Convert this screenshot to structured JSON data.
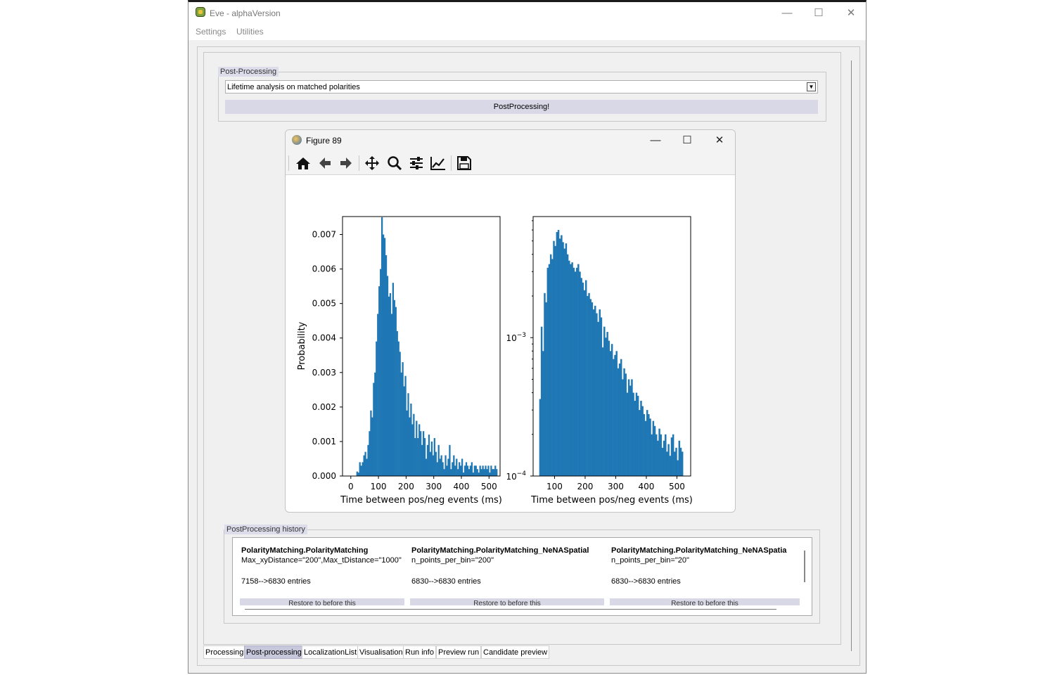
{
  "window": {
    "title": "Eve - alphaVersion",
    "controls": {
      "minimize": "—",
      "maximize": "☐",
      "close": "✕"
    }
  },
  "menu": [
    "Settings",
    "Utilities"
  ],
  "postprocessing": {
    "group_title": "Post-Processing",
    "selected_option": "Lifetime analysis on matched polarities",
    "run_button": "PostProcessing!"
  },
  "figure": {
    "title": "Figure 89",
    "toolbar": [
      "home-icon",
      "back-arrow-icon",
      "forward-arrow-icon",
      "pan-icon",
      "zoom-icon",
      "configure-subplots-icon",
      "edit-axis-icon",
      "save-icon"
    ]
  },
  "chart_data": [
    {
      "type": "bar",
      "title": "",
      "xlabel": "Time between pos/neg events (ms)",
      "ylabel": "Probability",
      "xlim": [
        -30,
        540
      ],
      "ylim": [
        0,
        0.00752
      ],
      "xticks": [
        "0",
        "100",
        "200",
        "300",
        "400",
        "500"
      ],
      "xtick_values": [
        0,
        100,
        200,
        300,
        400,
        500
      ],
      "yticks": [
        "0.000",
        "0.001",
        "0.002",
        "0.003",
        "0.004",
        "0.005",
        "0.006",
        "0.007"
      ],
      "ytick_values": [
        0,
        0.001,
        0.002,
        0.003,
        0.004,
        0.005,
        0.006,
        0.007
      ],
      "bin_start": 20,
      "bin_width": 5,
      "values": [
        0.00013,
        0.0001,
        0.0004,
        0.0003,
        0.0004,
        0.0006,
        0.0007,
        0.0005,
        0.0009,
        0.0013,
        0.0019,
        0.0017,
        0.0027,
        0.003,
        0.0039,
        0.0047,
        0.0055,
        0.006,
        0.0075,
        0.007,
        0.0069,
        0.0064,
        0.0058,
        0.0052,
        0.0053,
        0.0047,
        0.0056,
        0.0051,
        0.0049,
        0.0042,
        0.0039,
        0.0036,
        0.003,
        0.0033,
        0.0026,
        0.0029,
        0.0019,
        0.0024,
        0.0017,
        0.0021,
        0.0015,
        0.0018,
        0.0011,
        0.0016,
        0.0011,
        0.0015,
        0.0013,
        0.0009,
        0.0013,
        0.0011,
        0.0005,
        0.0009,
        0.0012,
        0.0007,
        0.001,
        0.0006,
        0.0011,
        0.0007,
        0.0004,
        0.0009,
        0.0005,
        0.0006,
        0.0004,
        0.0002,
        0.0006,
        0.0003,
        0.0005,
        0.0009,
        0.0002,
        0.0004,
        0.0006,
        0.0003,
        0.0005,
        0.0002,
        0.0004,
        0.0003,
        0.0005,
        0.0001,
        0.0003,
        0.0004,
        0.0003,
        0.0002,
        0.0003,
        0.0004,
        0.0001,
        0.0003,
        0.0003,
        0.0002,
        0.0001,
        0.0003,
        0.0002,
        0.0003,
        0.0002,
        0.0003,
        0.0002,
        0.0003,
        0.0001,
        0.0003,
        0.0002,
        0.0002,
        0.0003,
        0.0002
      ]
    },
    {
      "type": "bar",
      "title": "",
      "xlabel": "Time between pos/neg events (ms)",
      "ylabel": "",
      "yscale": "log",
      "xlim": [
        30,
        545
      ],
      "ylim": [
        0.0001,
        0.0075
      ],
      "xticks": [
        "100",
        "200",
        "300",
        "400",
        "500"
      ],
      "xtick_values": [
        100,
        200,
        300,
        400,
        500
      ],
      "yticks_log": [
        {
          "base": "10",
          "exp": "−4",
          "value": 0.0001
        },
        {
          "base": "10",
          "exp": "−3",
          "value": 0.001
        }
      ],
      "bin_start": 50,
      "bin_width": 5,
      "values": [
        0.00036,
        0.0012,
        0.0008,
        0.0021,
        0.0018,
        0.0032,
        0.0034,
        0.004,
        0.0037,
        0.005,
        0.0046,
        0.0058,
        0.006,
        0.0052,
        0.0055,
        0.0049,
        0.0044,
        0.0048,
        0.004,
        0.0036,
        0.0034,
        0.0035,
        0.0032,
        0.003,
        0.0032,
        0.0034,
        0.003,
        0.0027,
        0.0025,
        0.0022,
        0.0026,
        0.002,
        0.0021,
        0.0019,
        0.0018,
        0.0016,
        0.0017,
        0.0015,
        0.0013,
        0.0016,
        0.0014,
        0.00085,
        0.0012,
        0.001,
        0.0011,
        0.00095,
        0.0008,
        0.0009,
        0.0007,
        0.00075,
        0.0008,
        0.0006,
        0.00065,
        0.0007,
        0.0005,
        0.0006,
        0.00055,
        0.0004,
        0.0005,
        0.00045,
        0.0005,
        0.0004,
        0.00035,
        0.0004,
        0.00038,
        0.0003,
        0.00035,
        0.00032,
        0.00028,
        0.00025,
        0.0003,
        0.00028,
        0.00026,
        0.0002,
        0.00025,
        0.00023,
        0.0002,
        0.00018,
        0.00022,
        0.0002,
        0.00016,
        0.00018,
        0.0002,
        0.00015,
        0.00017,
        0.00014,
        0.00019,
        0.0002,
        0.00015,
        0.00016,
        0.00013,
        0.00018,
        0.00016,
        0.00015
      ]
    }
  ],
  "history": {
    "group_title": "PostProcessing history",
    "entries": [
      {
        "title": "PolarityMatching.PolarityMatching",
        "params": "Max_xyDistance=\"200\",Max_tDistance=\"1000\"",
        "entries": "7158-->6830 entries"
      },
      {
        "title": "PolarityMatching.PolarityMatching_NeNASpatial",
        "params": "n_points_per_bin=\"200\"",
        "entries": "6830-->6830 entries"
      },
      {
        "title": "PolarityMatching.PolarityMatching_NeNASpatia",
        "params": "n_points_per_bin=\"20\"",
        "entries": "6830-->6830 entries"
      }
    ],
    "button_label": "Restore to before this"
  },
  "tabs": [
    {
      "label": "Processing",
      "active": false
    },
    {
      "label": "Post-processing",
      "active": true
    },
    {
      "label": "LocalizationList",
      "active": false
    },
    {
      "label": "Visualisation",
      "active": false
    },
    {
      "label": "Run info",
      "active": false
    },
    {
      "label": "Preview run",
      "active": false
    },
    {
      "label": "Candidate preview",
      "active": false
    }
  ],
  "colors": {
    "bar": "#1f77b4",
    "accent": "#d8d8e6",
    "tab_active": "#c8c8dc"
  }
}
